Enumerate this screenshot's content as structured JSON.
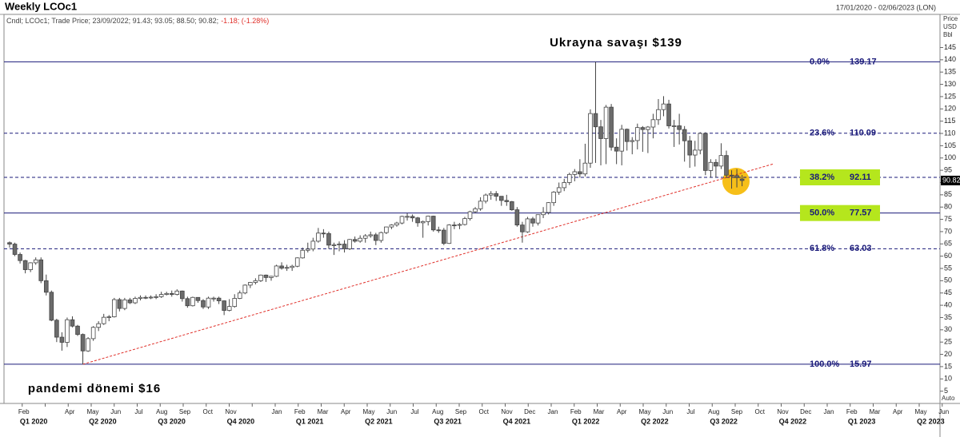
{
  "chart_data": {
    "type": "candlestick",
    "title": "Weekly LCOc1",
    "date_range": "17/01/2020 - 02/06/2023 (LON)",
    "legend_text": "Cndl; LCOc1; Trade Price; 23/09/2022; 91.43; 93.05; 88.50; 90.82;",
    "legend_change": "-1.18; (-1.28%)",
    "y_axis_label": [
      "Price",
      "USD",
      "Bbl"
    ],
    "y_axis_mode": "Auto",
    "up_color": "#ffffff",
    "down_color": "#6b6b6b",
    "grid": false,
    "categories": [
      null,
      null,
      null,
      null,
      null,
      null,
      null,
      null,
      null,
      null,
      null,
      null,
      null,
      null,
      null,
      null,
      null,
      null,
      null,
      null,
      null,
      null,
      null,
      null,
      null,
      null,
      null,
      null,
      null,
      null,
      null,
      null,
      null,
      null,
      null,
      null,
      null,
      null,
      null,
      null,
      null,
      null,
      null,
      null,
      null,
      null,
      null,
      null,
      null,
      null,
      null,
      null,
      null,
      null,
      null,
      null,
      null,
      null,
      null,
      null,
      null,
      null,
      null,
      null,
      null,
      null,
      null,
      null,
      null,
      null,
      null,
      null,
      null,
      null,
      null,
      null,
      null,
      null,
      null,
      null,
      null,
      null,
      null,
      null,
      null,
      null,
      null,
      null,
      null,
      null,
      null,
      null,
      null,
      null,
      null,
      null,
      null,
      null,
      null,
      null,
      null,
      null,
      null,
      null,
      null,
      null,
      null,
      null,
      null,
      null,
      null,
      null,
      null,
      null,
      null,
      null,
      null,
      null,
      null,
      null,
      null,
      null,
      null,
      null,
      null,
      null,
      null,
      null,
      null,
      null,
      null,
      null,
      null,
      null,
      null,
      null,
      null,
      null,
      null,
      null,
      null
    ],
    "open": [
      65.5,
      64.9,
      60.7,
      58.2,
      54.5,
      57.3,
      58.5,
      50.0,
      45.3,
      33.9,
      27.0,
      24.9,
      34.1,
      31.5,
      28.1,
      21.4,
      26.4,
      31.0,
      32.5,
      35.1,
      35.3,
      42.3,
      38.7,
      42.2,
      41.0,
      42.8,
      43.2,
      43.1,
      43.3,
      43.5,
      44.4,
      44.8,
      44.4,
      45.8,
      42.7,
      39.8,
      43.2,
      41.9,
      39.3,
      42.9,
      42.9,
      41.8,
      37.9,
      39.5,
      42.8,
      45.0,
      48.2,
      49.3,
      50.0,
      52.3,
      51.3,
      51.8,
      56.0,
      55.1,
      55.4,
      55.9,
      59.3,
      62.4,
      62.9,
      66.1,
      69.4,
      69.2,
      64.5,
      64.6,
      64.9,
      63.0,
      66.8,
      66.1,
      67.3,
      68.3,
      68.7,
      66.4,
      69.6,
      71.9,
      72.7,
      73.5,
      76.2,
      76.2,
      75.6,
      73.6,
      74.1,
      76.3,
      70.7,
      70.6,
      65.2,
      72.7,
      72.6,
      72.9,
      75.3,
      78.1,
      79.3,
      82.4,
      84.9,
      85.5,
      84.4,
      82.7,
      82.2,
      78.9,
      72.7,
      69.9,
      75.2,
      73.5,
      76.9,
      77.8,
      81.8,
      86.1,
      87.9,
      90.0,
      93.3,
      94.4,
      93.5,
      97.9,
      118.1,
      112.7,
      107.9,
      120.7,
      104.4,
      102.8,
      111.7,
      106.7,
      107.1,
      112.4,
      111.6,
      112.6,
      115.6,
      119.7,
      122.0,
      113.1,
      113.1,
      111.6,
      107.0,
      101.2,
      103.2,
      110.0,
      94.9,
      98.2,
      96.7,
      101.0,
      93.0,
      92.8,
      91.43
    ],
    "high": [
      66.0,
      65.5,
      61.5,
      58.5,
      57.5,
      59.5,
      59.5,
      52.5,
      46.0,
      34.5,
      29.0,
      35.0,
      35.5,
      32.0,
      28.5,
      27.0,
      31.5,
      33.5,
      36.5,
      36.0,
      43.0,
      43.0,
      43.0,
      43.0,
      43.5,
      44.0,
      44.0,
      44.0,
      44.5,
      45.5,
      45.5,
      46.0,
      46.5,
      46.0,
      43.5,
      43.5,
      43.0,
      42.5,
      43.5,
      43.5,
      43.5,
      42.0,
      42.5,
      44.5,
      46.0,
      48.5,
      49.5,
      51.0,
      52.5,
      52.5,
      52.0,
      56.5,
      57.5,
      56.5,
      56.5,
      59.5,
      63.5,
      65.5,
      67.5,
      71.5,
      71.0,
      70.0,
      65.5,
      66.0,
      66.5,
      67.0,
      68.0,
      68.5,
      69.0,
      70.0,
      69.5,
      70.0,
      72.0,
      73.0,
      74.0,
      76.5,
      77.5,
      77.0,
      76.0,
      74.5,
      76.5,
      76.5,
      72.0,
      71.5,
      73.0,
      74.0,
      73.5,
      76.0,
      78.5,
      80.0,
      84.0,
      85.5,
      86.5,
      86.5,
      84.0,
      85.0,
      82.5,
      80.0,
      74.0,
      76.0,
      76.0,
      77.0,
      80.0,
      82.0,
      86.5,
      90.0,
      91.5,
      94.0,
      95.5,
      99.5,
      105.8,
      119.8,
      139.17,
      115.5,
      121.6,
      122.0,
      108.0,
      113.5,
      112.0,
      108.5,
      114.0,
      113.0,
      113.0,
      118.0,
      124.0,
      125.2,
      123.7,
      115.5,
      118.0,
      113.0,
      109.0,
      107.0,
      110.5,
      110.5,
      99.5,
      99.5,
      106.0,
      103.0,
      95.0,
      95.5,
      93.05
    ],
    "low": [
      63.5,
      60.0,
      57.0,
      53.0,
      53.5,
      56.5,
      49.0,
      44.0,
      33.5,
      25.0,
      21.5,
      23.0,
      31.0,
      27.5,
      15.97,
      21.0,
      25.5,
      29.5,
      32.0,
      33.5,
      35.0,
      37.5,
      38.0,
      40.5,
      40.5,
      42.0,
      42.5,
      42.5,
      42.5,
      43.0,
      44.0,
      43.5,
      44.0,
      41.5,
      39.0,
      39.5,
      41.0,
      38.5,
      38.5,
      41.5,
      40.5,
      36.0,
      37.5,
      39.0,
      42.5,
      44.5,
      47.0,
      48.5,
      49.5,
      49.5,
      50.0,
      51.5,
      54.5,
      54.0,
      54.0,
      55.5,
      59.0,
      61.5,
      62.0,
      65.5,
      67.5,
      63.0,
      60.5,
      62.0,
      61.5,
      62.5,
      65.5,
      65.5,
      65.5,
      67.5,
      64.5,
      65.5,
      69.0,
      71.0,
      72.0,
      73.0,
      74.5,
      74.0,
      72.0,
      67.5,
      72.5,
      70.0,
      69.5,
      64.5,
      65.0,
      71.0,
      71.0,
      72.5,
      74.5,
      77.5,
      78.5,
      81.5,
      83.0,
      82.5,
      80.5,
      80.5,
      78.5,
      72.0,
      65.5,
      69.5,
      72.0,
      72.5,
      75.5,
      77.0,
      80.5,
      85.0,
      86.5,
      89.0,
      90.5,
      92.0,
      92.5,
      96.0,
      98.0,
      97.0,
      97.5,
      103.0,
      97.5,
      97.0,
      103.0,
      101.5,
      103.5,
      102.5,
      102.0,
      108.0,
      113.5,
      117.0,
      112.0,
      104.5,
      105.5,
      98.5,
      96.0,
      96.5,
      101.5,
      93.0,
      92.0,
      92.0,
      95.5,
      92.0,
      87.5,
      88.0,
      88.5
    ],
    "close": [
      64.9,
      60.7,
      58.2,
      54.5,
      57.3,
      58.5,
      50.0,
      45.3,
      33.9,
      27.0,
      24.9,
      34.1,
      31.5,
      28.1,
      21.4,
      26.4,
      31.0,
      32.5,
      35.1,
      35.3,
      42.3,
      38.7,
      42.2,
      41.0,
      42.8,
      43.2,
      43.1,
      43.3,
      43.5,
      44.4,
      44.8,
      44.4,
      45.8,
      42.7,
      39.8,
      43.2,
      41.9,
      39.3,
      42.9,
      42.9,
      41.8,
      37.9,
      39.5,
      42.8,
      45.0,
      48.2,
      49.3,
      50.0,
      52.3,
      51.3,
      51.8,
      56.0,
      55.1,
      55.4,
      55.9,
      59.3,
      62.4,
      62.9,
      66.1,
      69.4,
      69.2,
      64.5,
      64.6,
      64.9,
      63.0,
      66.8,
      66.1,
      67.3,
      68.3,
      68.7,
      66.4,
      69.6,
      71.9,
      72.7,
      73.5,
      76.2,
      76.2,
      75.6,
      73.6,
      74.1,
      76.3,
      70.7,
      70.6,
      65.2,
      72.7,
      72.6,
      72.9,
      75.3,
      78.1,
      79.3,
      82.4,
      84.9,
      85.5,
      84.4,
      82.7,
      82.2,
      78.9,
      72.7,
      69.9,
      75.2,
      73.5,
      76.9,
      77.8,
      81.8,
      86.1,
      87.9,
      90.0,
      93.3,
      94.4,
      93.5,
      97.9,
      118.1,
      112.7,
      107.9,
      120.7,
      104.4,
      102.8,
      111.7,
      106.7,
      107.1,
      112.4,
      111.6,
      112.6,
      115.6,
      119.7,
      122.0,
      113.1,
      113.1,
      111.6,
      107.0,
      101.2,
      103.2,
      110.0,
      94.9,
      98.2,
      96.7,
      101.0,
      93.0,
      92.8,
      92.0,
      90.82
    ],
    "ylim": [
      0,
      158.5
    ],
    "yticks": [
      5,
      10,
      15,
      20,
      25,
      30,
      35,
      40,
      45,
      50,
      55,
      60,
      65,
      70,
      75,
      80,
      85,
      90,
      95,
      100,
      105,
      110,
      115,
      120,
      125,
      130,
      135,
      140,
      145
    ],
    "fib_levels": [
      {
        "label": "0.0%",
        "value": 139.17,
        "style": "solid",
        "highlight": false
      },
      {
        "label": "23.6%",
        "value": 110.09,
        "style": "dashed",
        "highlight": false
      },
      {
        "label": "38.2%",
        "value": 92.11,
        "style": "dashed",
        "highlight": true
      },
      {
        "label": "50.0%",
        "value": 77.57,
        "style": "solid",
        "highlight": true
      },
      {
        "label": "61.8%",
        "value": 63.03,
        "style": "dashed",
        "highlight": false
      },
      {
        "label": "100.0%",
        "value": 15.97,
        "style": "solid",
        "highlight": false
      }
    ],
    "fib_color": "#1a1a7a",
    "highlight_color": "#b5e61d",
    "trendline": {
      "x": [
        14,
        146
      ],
      "values": [
        15.97,
        97.6
      ],
      "color": "#e0302a"
    },
    "annotations": [
      {
        "text": "Ukrayna savaşı $139"
      },
      {
        "text": "pandemi dönemi $16"
      }
    ],
    "month_labels": [
      null,
      "Feb",
      null,
      "Apr",
      "May",
      "Jun",
      "Jul",
      "Aug",
      "Sep",
      "Oct",
      "Nov",
      null,
      "Jan",
      "Feb",
      "Mar",
      "Apr",
      "May",
      "Jun",
      "Jul",
      "Aug",
      "Sep",
      "Oct",
      "Nov",
      "Dec",
      "Jan",
      "Feb",
      "Mar",
      "Apr",
      "May",
      "Jun",
      "Jul",
      "Aug",
      "Sep",
      "Oct",
      "Nov",
      "Dec",
      "Jan",
      "Feb",
      "Mar",
      "Apr",
      "May",
      "Jun"
    ],
    "quarter_labels": [
      "Q1 2020",
      "Q2 2020",
      "Q3 2020",
      "Q4 2020",
      "Q1 2021",
      "Q2 2021",
      "Q3 2021",
      "Q4 2021",
      "Q1 2022",
      "Q2 2022",
      "Q3 2022",
      "Q4 2022",
      "Q1 2023",
      "Q2 2023"
    ]
  }
}
